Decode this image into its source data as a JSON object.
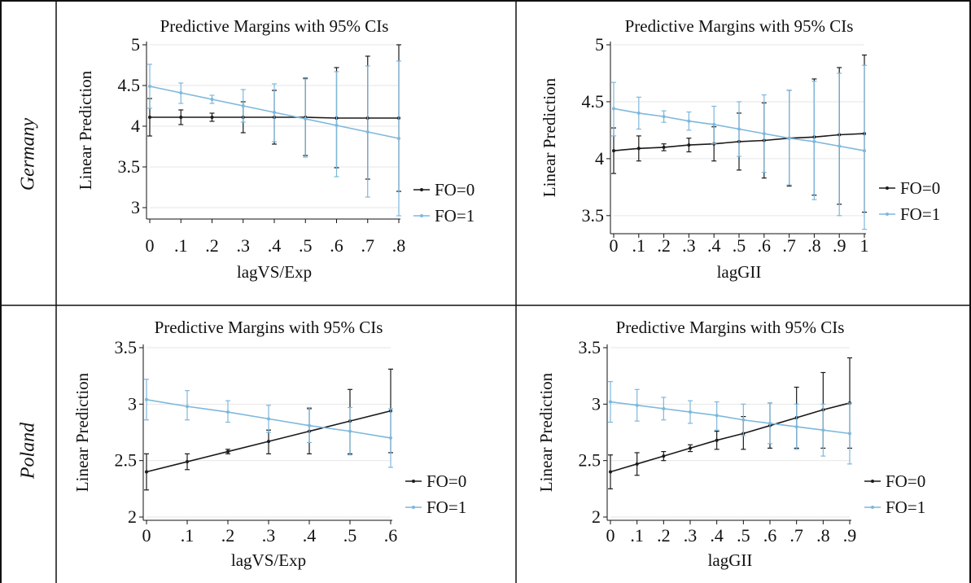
{
  "rows": [
    {
      "label": "Germany"
    },
    {
      "label": "Poland"
    }
  ],
  "colors": {
    "fo0": "#1a1a1a",
    "fo1": "#7db8dc",
    "grid": "#e6e6e6",
    "border": "#111111"
  },
  "chart_data": [
    {
      "type": "line",
      "title": "Predictive Margins with 95% CIs",
      "xlabel": "lagVS/Exp",
      "ylabel": "Linear Prediction",
      "x": [
        0,
        0.1,
        0.2,
        0.3,
        0.4,
        0.5,
        0.6,
        0.7,
        0.8
      ],
      "xticks": [
        0,
        0.1,
        0.2,
        0.3,
        0.4,
        0.5,
        0.6,
        0.7,
        0.8
      ],
      "xtick_labels": [
        "0",
        ".1",
        ".2",
        ".3",
        ".4",
        ".5",
        ".6",
        ".7",
        ".8"
      ],
      "xlim": [
        0,
        0.8
      ],
      "yticks": [
        3,
        3.5,
        4,
        4.5,
        5
      ],
      "ytick_labels": [
        "3",
        "3.5",
        "4",
        "4.5",
        "5"
      ],
      "ylim": [
        2.9,
        5.0
      ],
      "legend": [
        "FO=0",
        "FO=1"
      ],
      "legend_position": "right",
      "series": [
        {
          "name": "FO=0",
          "values": [
            4.11,
            4.11,
            4.11,
            4.11,
            4.11,
            4.11,
            4.1,
            4.1,
            4.1
          ],
          "lower": [
            3.88,
            4.02,
            4.06,
            3.92,
            3.78,
            3.64,
            3.49,
            3.35,
            3.2
          ],
          "upper": [
            4.34,
            4.2,
            4.16,
            4.3,
            4.44,
            4.59,
            4.72,
            4.86,
            5.0
          ]
        },
        {
          "name": "FO=1",
          "values": [
            4.49,
            4.41,
            4.33,
            4.25,
            4.17,
            4.09,
            4.01,
            3.93,
            3.85
          ],
          "lower": [
            4.22,
            4.28,
            4.28,
            4.05,
            3.81,
            3.62,
            3.38,
            3.13,
            2.9
          ],
          "upper": [
            4.76,
            4.53,
            4.38,
            4.45,
            4.52,
            4.58,
            4.67,
            4.74,
            4.8
          ]
        }
      ]
    },
    {
      "type": "line",
      "title": "Predictive Margins with 95% CIs",
      "xlabel": "lagGII",
      "ylabel": "Linear Prediction",
      "x": [
        0,
        0.1,
        0.2,
        0.3,
        0.4,
        0.5,
        0.6,
        0.7,
        0.8,
        0.9,
        1
      ],
      "xticks": [
        0,
        0.1,
        0.2,
        0.3,
        0.4,
        0.5,
        0.6,
        0.7,
        0.8,
        0.9,
        1
      ],
      "xtick_labels": [
        "0",
        ".1",
        ".2",
        ".3",
        ".4",
        ".5",
        ".6",
        ".7",
        ".8",
        ".9",
        "1"
      ],
      "xlim": [
        0,
        1
      ],
      "yticks": [
        3.5,
        4,
        4.5,
        5
      ],
      "ytick_labels": [
        "3.5",
        "4",
        "4.5",
        "5"
      ],
      "ylim": [
        3.37,
        5.0
      ],
      "legend": [
        "FO=0",
        "FO=1"
      ],
      "legend_position": "right",
      "series": [
        {
          "name": "FO=0",
          "values": [
            4.07,
            4.09,
            4.1,
            4.12,
            4.13,
            4.15,
            4.16,
            4.18,
            4.19,
            4.21,
            4.22
          ],
          "lower": [
            3.87,
            3.98,
            4.07,
            4.06,
            3.98,
            3.9,
            3.83,
            3.76,
            3.68,
            3.6,
            3.53
          ],
          "upper": [
            4.27,
            4.2,
            4.13,
            4.18,
            4.28,
            4.4,
            4.49,
            4.6,
            4.7,
            4.8,
            4.91
          ]
        },
        {
          "name": "FO=1",
          "values": [
            4.44,
            4.4,
            4.37,
            4.33,
            4.3,
            4.26,
            4.22,
            4.18,
            4.15,
            4.11,
            4.07
          ],
          "lower": [
            4.2,
            4.26,
            4.32,
            4.25,
            4.13,
            4.02,
            3.88,
            3.77,
            3.64,
            3.5,
            3.38
          ],
          "upper": [
            4.67,
            4.54,
            4.42,
            4.41,
            4.46,
            4.5,
            4.56,
            4.6,
            4.68,
            4.75,
            4.82
          ]
        }
      ]
    },
    {
      "type": "line",
      "title": "Predictive Margins with 95% CIs",
      "xlabel": "lagVS/Exp",
      "ylabel": "Linear Prediction",
      "x": [
        0,
        0.1,
        0.2,
        0.3,
        0.4,
        0.5,
        0.6
      ],
      "xticks": [
        0,
        0.1,
        0.2,
        0.3,
        0.4,
        0.5,
        0.6
      ],
      "xtick_labels": [
        "0",
        ".1",
        ".2",
        ".3",
        ".4",
        ".5",
        ".6"
      ],
      "xlim": [
        0,
        0.6
      ],
      "yticks": [
        2,
        2.5,
        3,
        3.5
      ],
      "ytick_labels": [
        "2",
        "2.5",
        "3",
        "3.5"
      ],
      "ylim": [
        2.0,
        3.5
      ],
      "legend": [
        "FO=0",
        "FO=1"
      ],
      "legend_position": "right",
      "series": [
        {
          "name": "FO=0",
          "values": [
            2.4,
            2.49,
            2.58,
            2.67,
            2.76,
            2.85,
            2.94
          ],
          "lower": [
            2.24,
            2.42,
            2.56,
            2.56,
            2.56,
            2.56,
            2.57
          ],
          "upper": [
            2.56,
            2.56,
            2.6,
            2.77,
            2.96,
            3.13,
            3.31
          ]
        },
        {
          "name": "FO=1",
          "values": [
            3.04,
            2.98,
            2.93,
            2.87,
            2.81,
            2.76,
            2.7
          ],
          "lower": [
            2.86,
            2.86,
            2.84,
            2.75,
            2.66,
            2.55,
            2.44
          ],
          "upper": [
            3.22,
            3.12,
            3.03,
            2.99,
            2.97,
            2.97,
            2.96
          ]
        }
      ]
    },
    {
      "type": "line",
      "title": "Predictive Margins with 95% CIs",
      "xlabel": "lagGII",
      "ylabel": "Linear Prediction",
      "x": [
        0,
        0.1,
        0.2,
        0.3,
        0.4,
        0.5,
        0.6,
        0.7,
        0.8,
        0.9
      ],
      "xticks": [
        0,
        0.1,
        0.2,
        0.3,
        0.4,
        0.5,
        0.6,
        0.7,
        0.8,
        0.9
      ],
      "xtick_labels": [
        "0",
        ".1",
        ".2",
        ".3",
        ".4",
        ".5",
        ".6",
        ".7",
        ".8",
        ".9"
      ],
      "xlim": [
        0,
        0.9
      ],
      "yticks": [
        2,
        2.5,
        3,
        3.5
      ],
      "ytick_labels": [
        "2",
        "2.5",
        "3",
        "3.5"
      ],
      "ylim": [
        2.0,
        3.5
      ],
      "legend": [
        "FO=0",
        "FO=1"
      ],
      "legend_position": "right",
      "series": [
        {
          "name": "FO=0",
          "values": [
            2.4,
            2.47,
            2.54,
            2.61,
            2.68,
            2.74,
            2.81,
            2.88,
            2.95,
            3.01
          ],
          "lower": [
            2.25,
            2.37,
            2.5,
            2.58,
            2.6,
            2.6,
            2.61,
            2.61,
            2.61,
            2.61
          ],
          "upper": [
            2.55,
            2.57,
            2.58,
            2.64,
            2.76,
            2.89,
            3.01,
            3.15,
            3.28,
            3.41
          ]
        },
        {
          "name": "FO=1",
          "values": [
            3.02,
            2.99,
            2.96,
            2.93,
            2.9,
            2.86,
            2.83,
            2.8,
            2.77,
            2.74
          ],
          "lower": [
            2.84,
            2.85,
            2.86,
            2.83,
            2.77,
            2.72,
            2.65,
            2.6,
            2.54,
            2.47
          ],
          "upper": [
            3.2,
            3.13,
            3.06,
            3.03,
            3.02,
            3.0,
            3.01,
            3.0,
            3.0,
            3.01
          ]
        }
      ]
    }
  ]
}
